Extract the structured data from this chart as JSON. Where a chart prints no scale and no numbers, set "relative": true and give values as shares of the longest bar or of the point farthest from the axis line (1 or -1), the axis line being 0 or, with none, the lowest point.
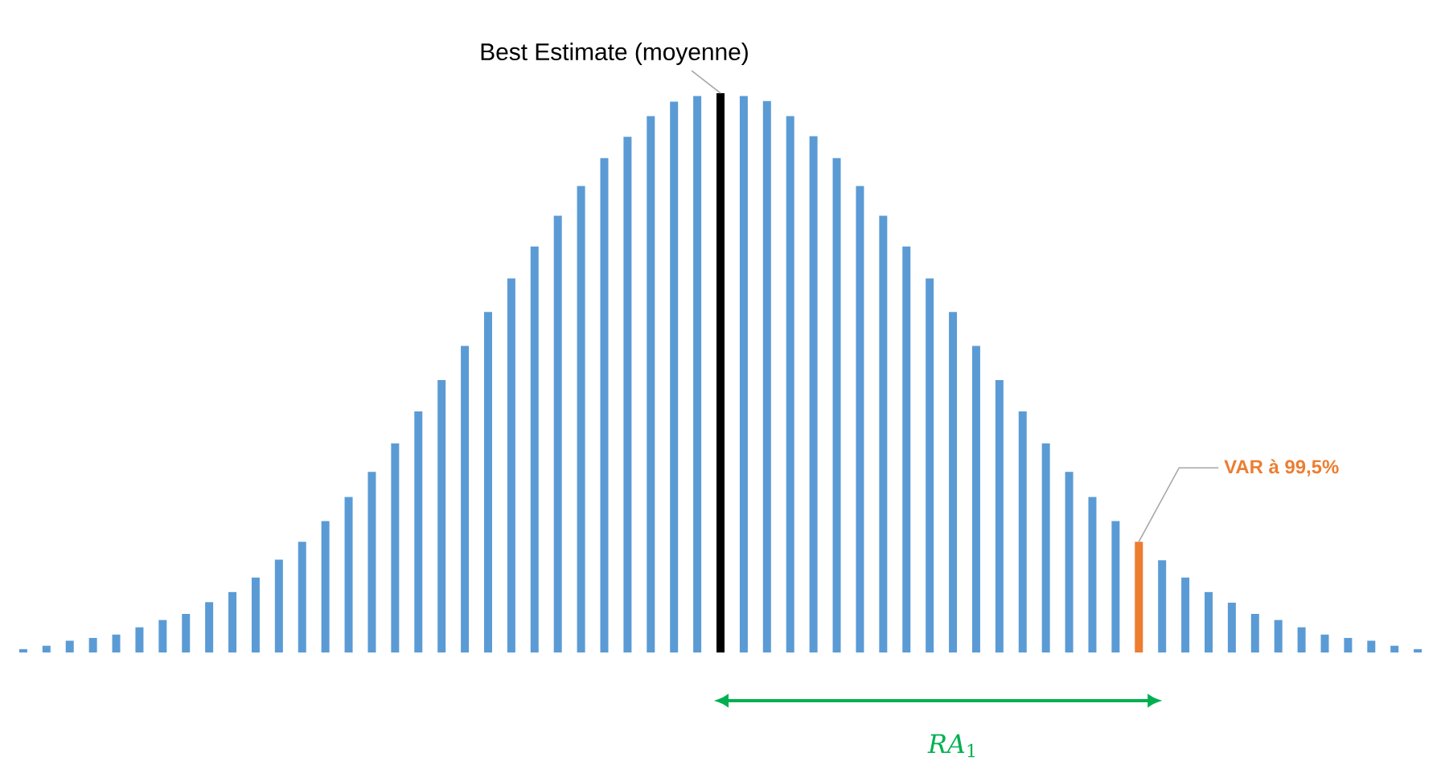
{
  "chart_data": {
    "type": "bar",
    "relative": true,
    "categories": [
      null,
      null,
      null,
      null,
      null,
      null,
      null,
      null,
      null,
      null,
      null,
      null,
      null,
      null,
      null,
      null,
      null,
      null,
      null,
      null,
      null,
      null,
      null,
      null,
      null,
      null,
      null,
      null,
      null,
      null,
      null,
      null,
      null,
      null,
      null,
      null,
      null,
      null,
      null,
      null,
      null,
      null,
      null,
      null,
      null,
      null,
      null,
      null,
      null,
      null,
      null,
      null,
      null,
      null,
      null,
      null,
      null,
      null,
      null,
      null,
      null
    ],
    "values": [
      0.006,
      0.012,
      0.021,
      0.026,
      0.032,
      0.045,
      0.058,
      0.069,
      0.09,
      0.108,
      0.134,
      0.166,
      0.198,
      0.235,
      0.278,
      0.323,
      0.374,
      0.431,
      0.487,
      0.548,
      0.609,
      0.669,
      0.726,
      0.781,
      0.834,
      0.884,
      0.922,
      0.959,
      0.985,
      0.995,
      1,
      0.995,
      0.986,
      0.959,
      0.923,
      0.884,
      0.834,
      0.781,
      0.726,
      0.669,
      0.609,
      0.548,
      0.487,
      0.431,
      0.374,
      0.323,
      0.278,
      0.235,
      0.198,
      0.165,
      0.134,
      0.108,
      0.089,
      0.069,
      0.058,
      0.045,
      0.032,
      0.026,
      0.021,
      0.012,
      0.006
    ],
    "colors": [
      "#5b9bd5",
      "#5b9bd5",
      "#5b9bd5",
      "#5b9bd5",
      "#5b9bd5",
      "#5b9bd5",
      "#5b9bd5",
      "#5b9bd5",
      "#5b9bd5",
      "#5b9bd5",
      "#5b9bd5",
      "#5b9bd5",
      "#5b9bd5",
      "#5b9bd5",
      "#5b9bd5",
      "#5b9bd5",
      "#5b9bd5",
      "#5b9bd5",
      "#5b9bd5",
      "#5b9bd5",
      "#5b9bd5",
      "#5b9bd5",
      "#5b9bd5",
      "#5b9bd5",
      "#5b9bd5",
      "#5b9bd5",
      "#5b9bd5",
      "#5b9bd5",
      "#5b9bd5",
      "#5b9bd5",
      "#000000",
      "#5b9bd5",
      "#5b9bd5",
      "#5b9bd5",
      "#5b9bd5",
      "#5b9bd5",
      "#5b9bd5",
      "#5b9bd5",
      "#5b9bd5",
      "#5b9bd5",
      "#5b9bd5",
      "#5b9bd5",
      "#5b9bd5",
      "#5b9bd5",
      "#5b9bd5",
      "#5b9bd5",
      "#5b9bd5",
      "#5b9bd5",
      "#ed7d31",
      "#5b9bd5",
      "#5b9bd5",
      "#5b9bd5",
      "#5b9bd5",
      "#5b9bd5",
      "#5b9bd5",
      "#5b9bd5",
      "#5b9bd5",
      "#5b9bd5",
      "#5b9bd5",
      "#5b9bd5",
      "#5b9bd5"
    ],
    "annotations": [
      "Best Estimate (moyenne)",
      "VAR à 99,5%",
      "*RA*$_{1}$"
    ]
  }
}
